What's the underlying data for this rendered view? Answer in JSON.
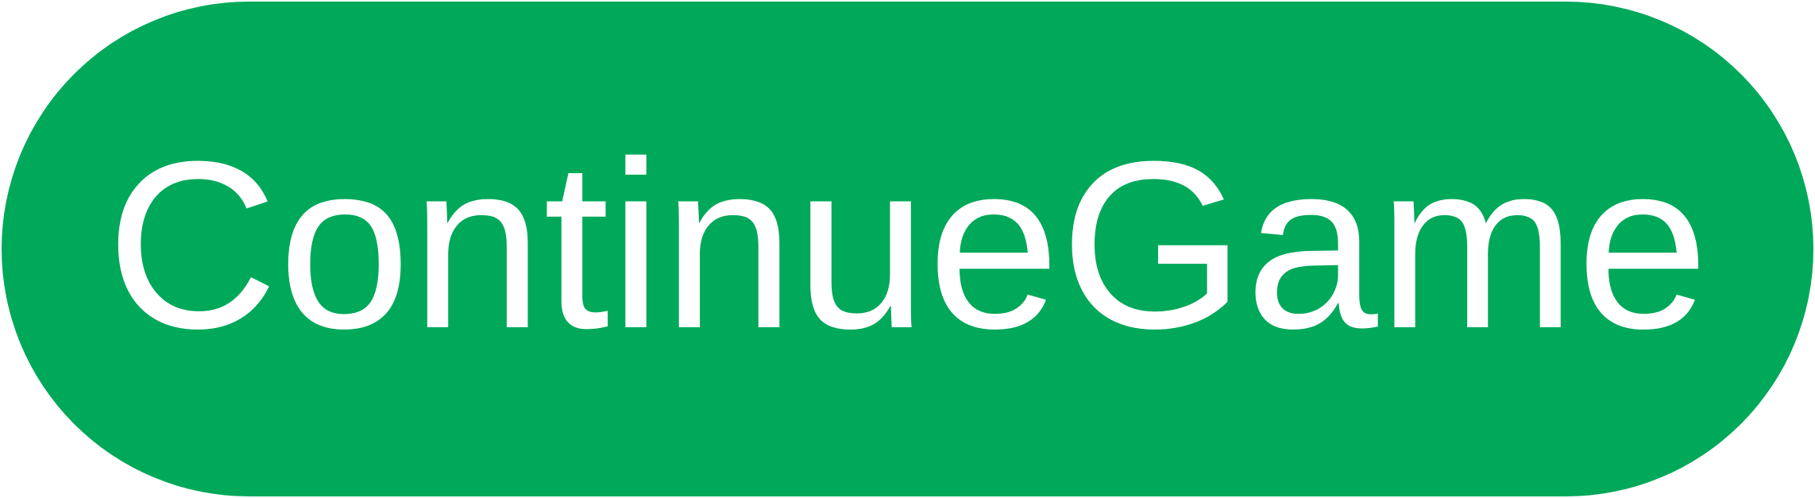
{
  "button": {
    "label": "ContinueGame",
    "background_color": "#00a85a",
    "text_color": "#ffffff"
  }
}
